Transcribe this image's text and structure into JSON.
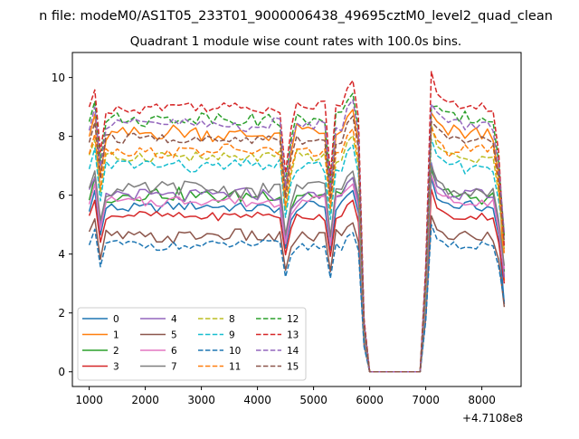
{
  "figure_suptitle": "n file: modeM0/AS1T05_233T01_9000006438_49695cztM0_level2_quad_clean",
  "chart_data": {
    "type": "line",
    "title": "Quadrant 1 module wise count rates with 100.0s bins.",
    "xlabel": "",
    "ylabel": "",
    "x_offset_label": "+4.7108e8",
    "xlim": [
      700,
      8700
    ],
    "ylim": [
      -0.5,
      10.85
    ],
    "x_ticks": [
      1000,
      2000,
      3000,
      4000,
      5000,
      6000,
      7000,
      8000
    ],
    "x_tick_labels": [
      "1000",
      "2000",
      "3000",
      "4000",
      "5000",
      "6000",
      "7000",
      "8000"
    ],
    "y_ticks": [
      0,
      2,
      4,
      6,
      8,
      10
    ],
    "y_tick_labels": [
      "0",
      "2",
      "4",
      "6",
      "8",
      "10"
    ],
    "grid": false,
    "legend_position": "lower-left",
    "legend_columns": 4,
    "segments": [
      {
        "x_start": 1000,
        "x_end": 5700,
        "step": 100
      },
      {
        "x_start": 5800,
        "x_end": 5900,
        "step": 100
      },
      {
        "x_start": 6000,
        "x_end": 6900,
        "step": 100
      },
      {
        "x_start": 7000,
        "x_end": 8400,
        "step": 100
      }
    ],
    "series": [
      {
        "name": "0",
        "color": "#1f77b4",
        "dash": "solid",
        "level": 5.6,
        "wiggle": 0.18,
        "end": 2.3,
        "peak": 6.6
      },
      {
        "name": "1",
        "color": "#ff7f0e",
        "dash": "solid",
        "level": 8.1,
        "wiggle": 0.28,
        "end": 3.1,
        "peak": 8.8
      },
      {
        "name": "2",
        "color": "#2ca02c",
        "dash": "solid",
        "level": 6.0,
        "wiggle": 0.25,
        "end": 3.4,
        "peak": 6.9
      },
      {
        "name": "3",
        "color": "#d62728",
        "dash": "solid",
        "level": 5.3,
        "wiggle": 0.14,
        "end": 3.0,
        "peak": 6.2
      },
      {
        "name": "4",
        "color": "#9467bd",
        "dash": "solid",
        "level": 6.0,
        "wiggle": 0.22,
        "end": 3.2,
        "peak": 7.1
      },
      {
        "name": "5",
        "color": "#8c564b",
        "dash": "solid",
        "level": 4.6,
        "wiggle": 0.22,
        "end": 2.2,
        "peak": 5.3
      },
      {
        "name": "6",
        "color": "#e377c2",
        "dash": "solid",
        "level": 5.8,
        "wiggle": 0.2,
        "end": 3.5,
        "peak": 6.7
      },
      {
        "name": "7",
        "color": "#7f7f7f",
        "dash": "solid",
        "level": 6.2,
        "wiggle": 0.25,
        "end": 3.6,
        "peak": 7.0
      },
      {
        "name": "8",
        "color": "#bcbd22",
        "dash": "dashed",
        "level": 7.3,
        "wiggle": 0.2,
        "end": 4.1,
        "peak": 8.4
      },
      {
        "name": "9",
        "color": "#17becf",
        "dash": "dashed",
        "level": 7.0,
        "wiggle": 0.22,
        "end": 4.3,
        "peak": 7.9
      },
      {
        "name": "10",
        "color": "#1f77b4",
        "dash": "dashed",
        "level": 4.3,
        "wiggle": 0.16,
        "end": 2.4,
        "peak": 5.0
      },
      {
        "name": "11",
        "color": "#ff7f0e",
        "dash": "dashed",
        "level": 7.5,
        "wiggle": 0.2,
        "end": 4.0,
        "peak": 8.3
      },
      {
        "name": "12",
        "color": "#2ca02c",
        "dash": "dashed",
        "level": 8.6,
        "wiggle": 0.22,
        "end": 4.6,
        "peak": 9.0
      },
      {
        "name": "13",
        "color": "#d62728",
        "dash": "dashed",
        "level": 9.0,
        "wiggle": 0.2,
        "end": 4.2,
        "peak": 10.2
      },
      {
        "name": "14",
        "color": "#9467bd",
        "dash": "dashed",
        "level": 8.4,
        "wiggle": 0.22,
        "end": 4.7,
        "peak": 9.1
      },
      {
        "name": "15",
        "color": "#8c564b",
        "dash": "dashed",
        "level": 7.9,
        "wiggle": 0.2,
        "end": 4.4,
        "peak": 8.5
      }
    ]
  }
}
